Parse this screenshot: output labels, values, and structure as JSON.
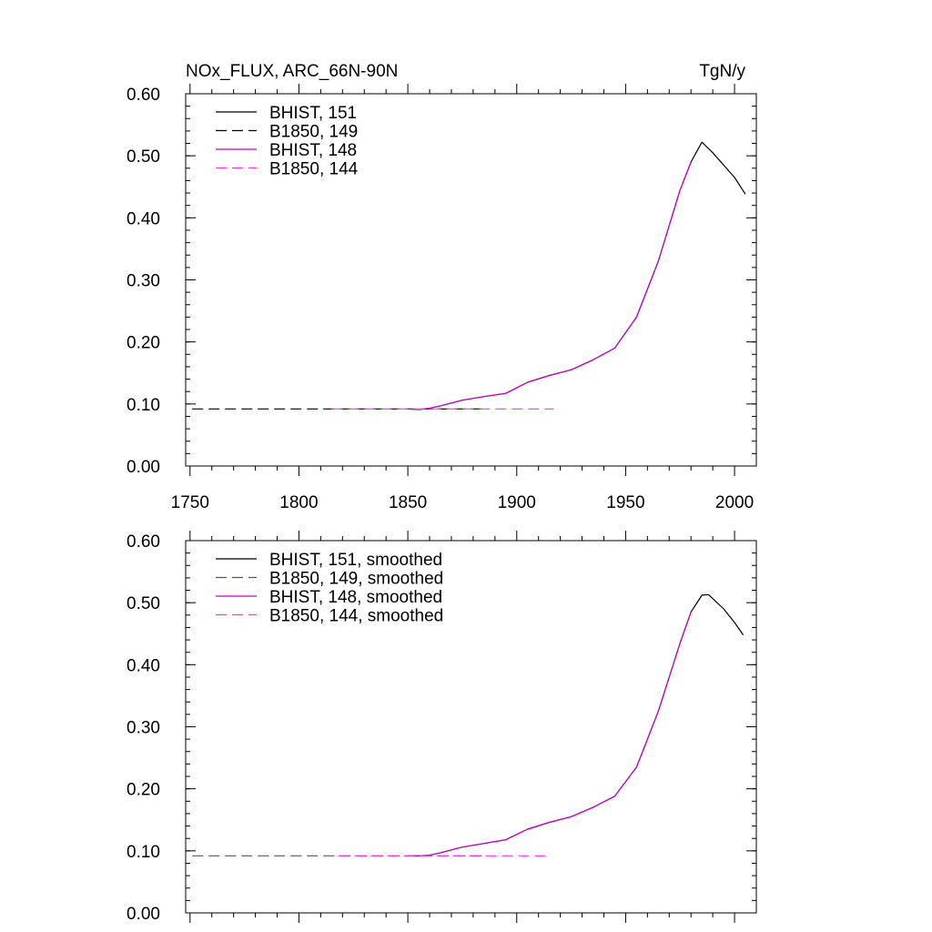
{
  "figure": {
    "title_left": "NOx_FLUX, ARC_66N-90N",
    "title_right": "TgN/y"
  },
  "chart_data": [
    {
      "type": "line",
      "title": "NOx_FLUX, ARC_66N-90N",
      "units": "TgN/y",
      "xlabel": "",
      "ylabel": "",
      "xlim": [
        1748,
        2010
      ],
      "ylim": [
        0,
        0.6
      ],
      "x_ticks": [
        1750,
        1800,
        1850,
        1900,
        1950,
        2000
      ],
      "x_tick_labels": [
        "1750",
        "1800",
        "1850",
        "1900",
        "1950",
        "2000"
      ],
      "y_ticks": [
        0,
        0.1,
        0.2,
        0.3,
        0.4,
        0.5,
        0.6
      ],
      "y_tick_labels": [
        "0.00",
        "0.10",
        "0.20",
        "0.30",
        "0.40",
        "0.50",
        "0.60"
      ],
      "grid": false,
      "legend_position": "top-left",
      "series": [
        {
          "name": "BHIST, 151",
          "color": "#000000",
          "dash": "solid",
          "x": [
            1850,
            1855,
            1860,
            1865,
            1875,
            1885,
            1895,
            1905,
            1915,
            1925,
            1935,
            1945,
            1955,
            1965,
            1975,
            1980,
            1985,
            1990,
            1995,
            2000,
            2005
          ],
          "y": [
            0.092,
            0.091,
            0.093,
            0.097,
            0.106,
            0.112,
            0.117,
            0.135,
            0.146,
            0.155,
            0.171,
            0.19,
            0.24,
            0.33,
            0.445,
            0.49,
            0.522,
            0.505,
            0.485,
            0.465,
            0.438
          ]
        },
        {
          "name": "B1850, 149",
          "color": "#000000",
          "dash": "dashed",
          "x": [
            1751,
            1800,
            1850,
            1885
          ],
          "y": [
            0.092,
            0.092,
            0.092,
            0.092
          ]
        },
        {
          "name": "BHIST, 148",
          "color": "#cc00cc",
          "dash": "solid",
          "x": [
            1850,
            1855,
            1860,
            1865,
            1875,
            1885,
            1895,
            1905,
            1915,
            1925,
            1935,
            1945,
            1955,
            1965,
            1975,
            1980
          ],
          "y": [
            0.092,
            0.091,
            0.093,
            0.097,
            0.106,
            0.112,
            0.117,
            0.135,
            0.146,
            0.155,
            0.171,
            0.19,
            0.24,
            0.33,
            0.445,
            0.49
          ]
        },
        {
          "name": "B1850, 144",
          "color": "#ff33ff",
          "dash": "dashed",
          "x": [
            1815,
            1850,
            1900,
            1917
          ],
          "y": [
            0.092,
            0.092,
            0.092,
            0.092
          ]
        }
      ]
    },
    {
      "type": "line",
      "title": "",
      "xlabel": "",
      "ylabel": "",
      "xlim": [
        1748,
        2010
      ],
      "ylim": [
        0,
        0.6
      ],
      "x_ticks": [
        1750,
        1800,
        1850,
        1900,
        1950,
        2000
      ],
      "y_ticks": [
        0,
        0.1,
        0.2,
        0.3,
        0.4,
        0.5,
        0.6
      ],
      "y_tick_labels": [
        "0.00",
        "0.10",
        "0.20",
        "0.30",
        "0.40",
        "0.50",
        "0.60"
      ],
      "grid": false,
      "legend_position": "top-left",
      "series": [
        {
          "name": "BHIST, 151, smoothed",
          "color": "#000000",
          "dash": "solid",
          "x": [
            1850,
            1855,
            1860,
            1865,
            1875,
            1885,
            1895,
            1905,
            1915,
            1925,
            1935,
            1945,
            1955,
            1965,
            1975,
            1980,
            1985,
            1988,
            1995,
            2000,
            2004
          ],
          "y": [
            0.092,
            0.092,
            0.093,
            0.097,
            0.106,
            0.112,
            0.118,
            0.135,
            0.146,
            0.155,
            0.17,
            0.188,
            0.235,
            0.325,
            0.435,
            0.485,
            0.512,
            0.513,
            0.49,
            0.468,
            0.448
          ]
        },
        {
          "name": "B1850, 149, smoothed",
          "color": "#555555",
          "dash": "dashed",
          "x": [
            1751,
            1800,
            1850,
            1885
          ],
          "y": [
            0.092,
            0.092,
            0.092,
            0.092
          ]
        },
        {
          "name": "BHIST, 148, smoothed",
          "color": "#cc00cc",
          "dash": "solid",
          "x": [
            1850,
            1855,
            1860,
            1865,
            1875,
            1885,
            1895,
            1905,
            1915,
            1925,
            1935,
            1945,
            1955,
            1965,
            1975,
            1980
          ],
          "y": [
            0.092,
            0.092,
            0.093,
            0.097,
            0.106,
            0.112,
            0.118,
            0.135,
            0.146,
            0.155,
            0.17,
            0.188,
            0.235,
            0.325,
            0.435,
            0.485
          ]
        },
        {
          "name": "B1850, 144, smoothed",
          "color": "#ff33ff",
          "dash": "dashed",
          "x": [
            1818,
            1850,
            1900,
            1914
          ],
          "y": [
            0.092,
            0.092,
            0.092,
            0.092
          ]
        }
      ]
    }
  ]
}
